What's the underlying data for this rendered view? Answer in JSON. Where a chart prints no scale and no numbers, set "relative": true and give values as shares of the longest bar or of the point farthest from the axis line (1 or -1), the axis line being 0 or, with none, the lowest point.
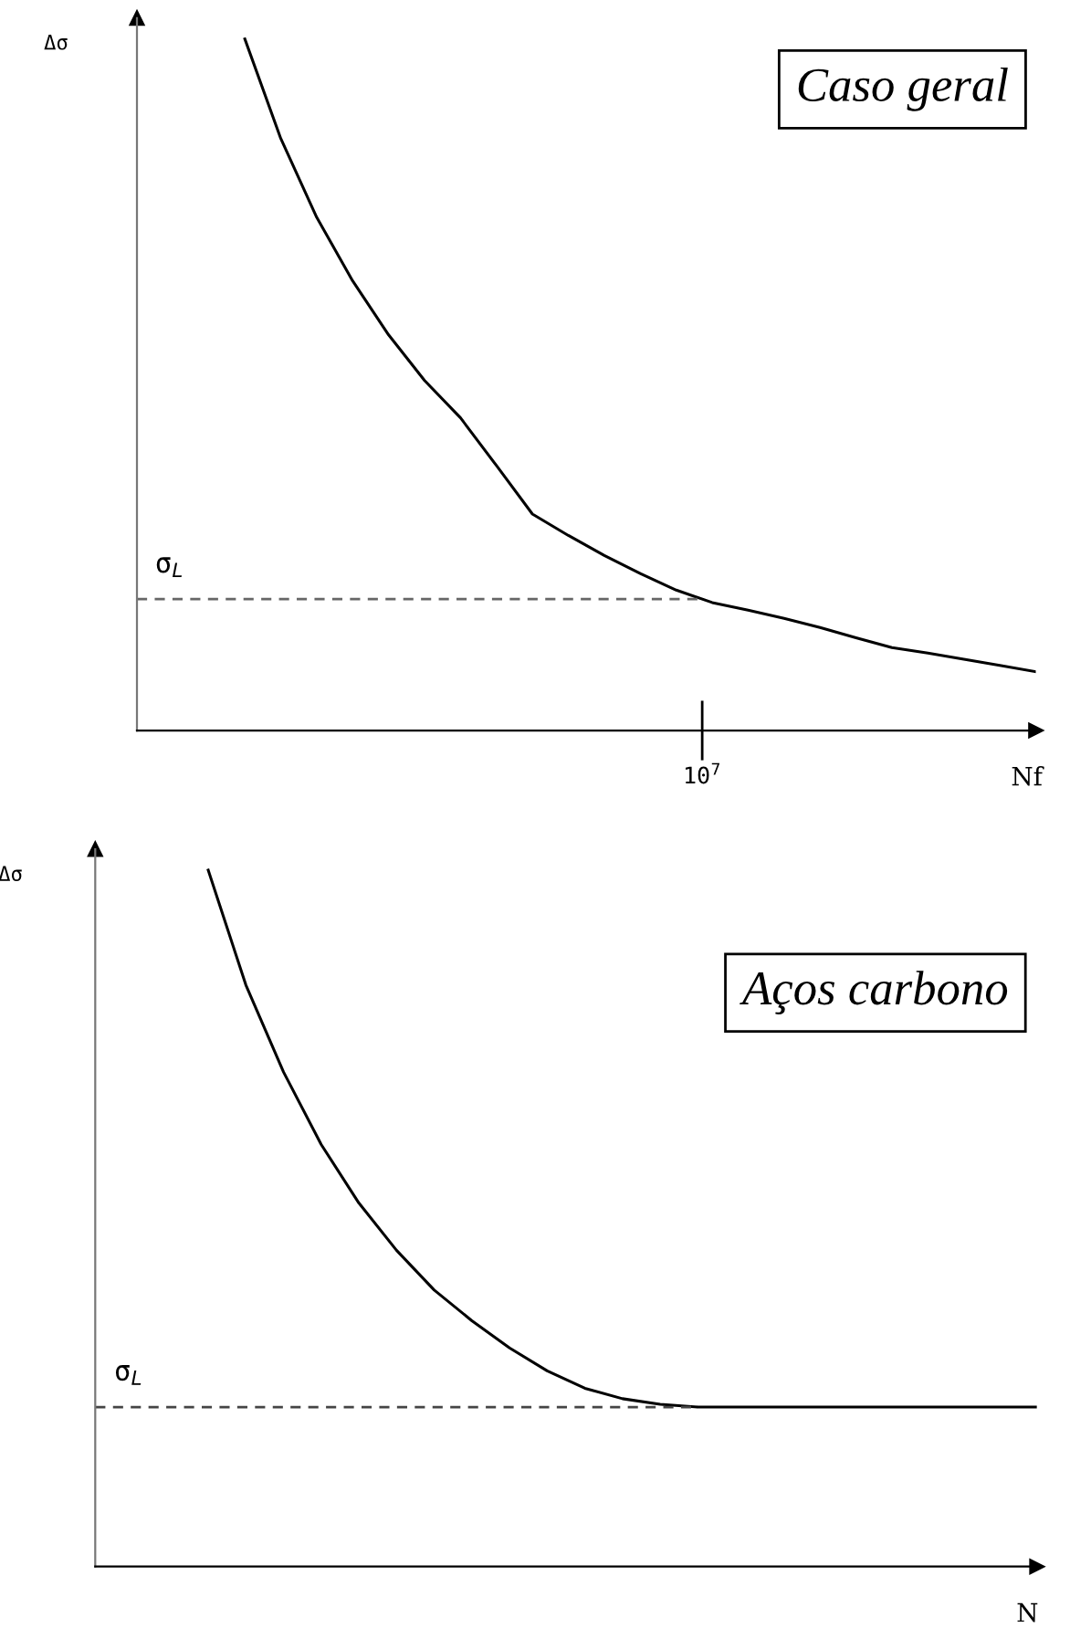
{
  "chart_data": [
    {
      "type": "line",
      "title": "Caso geral",
      "ylabel": "Δσ",
      "xlabel": "Nf",
      "relative": true,
      "marker": "none",
      "line_style": "solid",
      "categories": [
        null,
        null,
        null,
        null,
        null,
        null,
        null,
        null,
        null,
        null,
        null,
        null,
        null,
        null,
        null,
        null,
        null,
        null,
        null,
        null,
        null,
        null,
        null
      ],
      "series": [
        {
          "color": "#000000",
          "values": [
            1.0,
            0.856,
            0.742,
            0.65,
            0.572,
            0.506,
            0.452,
            0.383,
            0.313,
            0.282,
            0.253,
            0.227,
            0.203,
            0.185,
            0.174,
            0.162,
            0.149,
            0.134,
            0.12,
            0.112,
            0.103,
            0.094,
            0.085
          ]
        }
      ],
      "ref_lines": [
        {
          "axis": "y",
          "value": 0.19,
          "label": "σ$_{L}$",
          "color": "#666666",
          "line_style": "dashed"
        }
      ],
      "annotations": [
        "10$^{7}$"
      ]
    },
    {
      "type": "line",
      "title": "Aços carbono",
      "ylabel": "Δσ",
      "xlabel": "N",
      "relative": true,
      "marker": "none",
      "line_style": "solid",
      "categories": [
        null,
        null,
        null,
        null,
        null,
        null,
        null,
        null,
        null,
        null,
        null,
        null,
        null,
        null,
        null,
        null,
        null,
        null,
        null,
        null,
        null,
        null,
        null
      ],
      "series": [
        {
          "color": "#000000",
          "values": [
            1.0,
            0.835,
            0.71,
            0.606,
            0.522,
            0.454,
            0.397,
            0.353,
            0.314,
            0.281,
            0.256,
            0.241,
            0.233,
            0.229,
            0.229,
            0.229,
            0.229,
            0.229,
            0.229,
            0.229,
            0.229,
            0.229,
            0.229
          ]
        }
      ],
      "ref_lines": [
        {
          "axis": "y",
          "value": 0.229,
          "label": "σ$_{L}$",
          "color": "#444444",
          "line_style": "dashed"
        }
      ]
    }
  ]
}
